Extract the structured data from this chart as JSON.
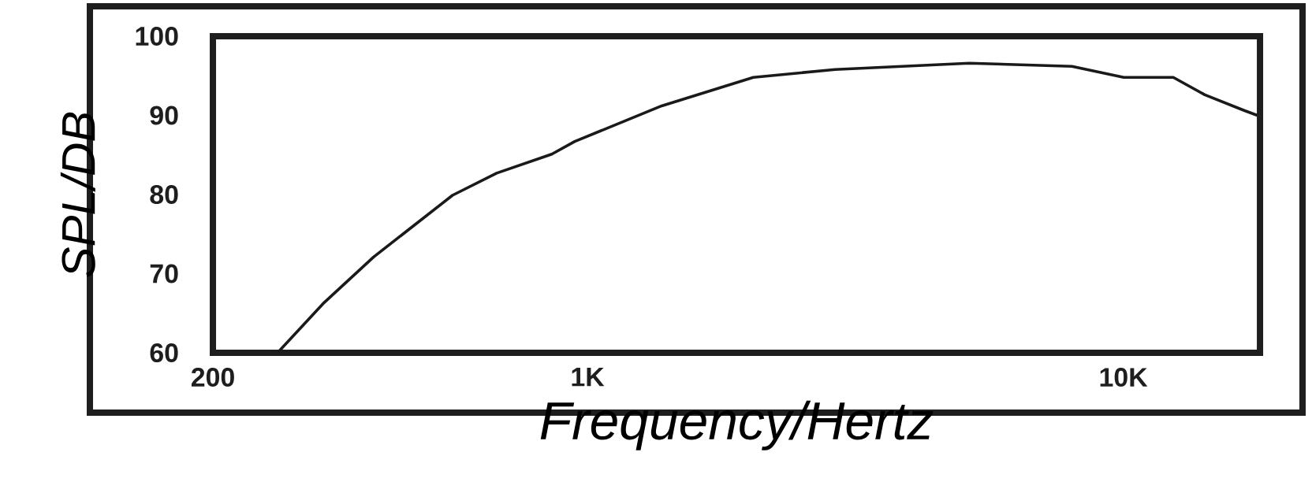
{
  "chart_data": {
    "type": "line",
    "xlabel": "Frequency/Hertz",
    "ylabel": "SPL/DB",
    "log": "x",
    "xlim": [
      200,
      18000
    ],
    "ylim": [
      60,
      100
    ],
    "xticks": [
      {
        "value": 200,
        "label": "200"
      },
      {
        "value": 1000,
        "label": "1K"
      },
      {
        "value": 10000,
        "label": "10K"
      }
    ],
    "yticks": [
      60,
      70,
      80,
      90,
      100
    ],
    "series": [
      {
        "color": "#1a1a1a",
        "x": [
          264,
          321,
          399,
          560,
          677,
          858,
          947,
          1376,
          2040,
          2900,
          5160,
          8020,
          10020,
          12400,
          14200,
          16850,
          17800
        ],
        "values": [
          60,
          66.2,
          72.1,
          79.9,
          82.7,
          85.1,
          86.7,
          91.2,
          94.8,
          95.8,
          96.6,
          96.2,
          94.8,
          94.8,
          92.6,
          90.6,
          90
        ]
      }
    ]
  }
}
